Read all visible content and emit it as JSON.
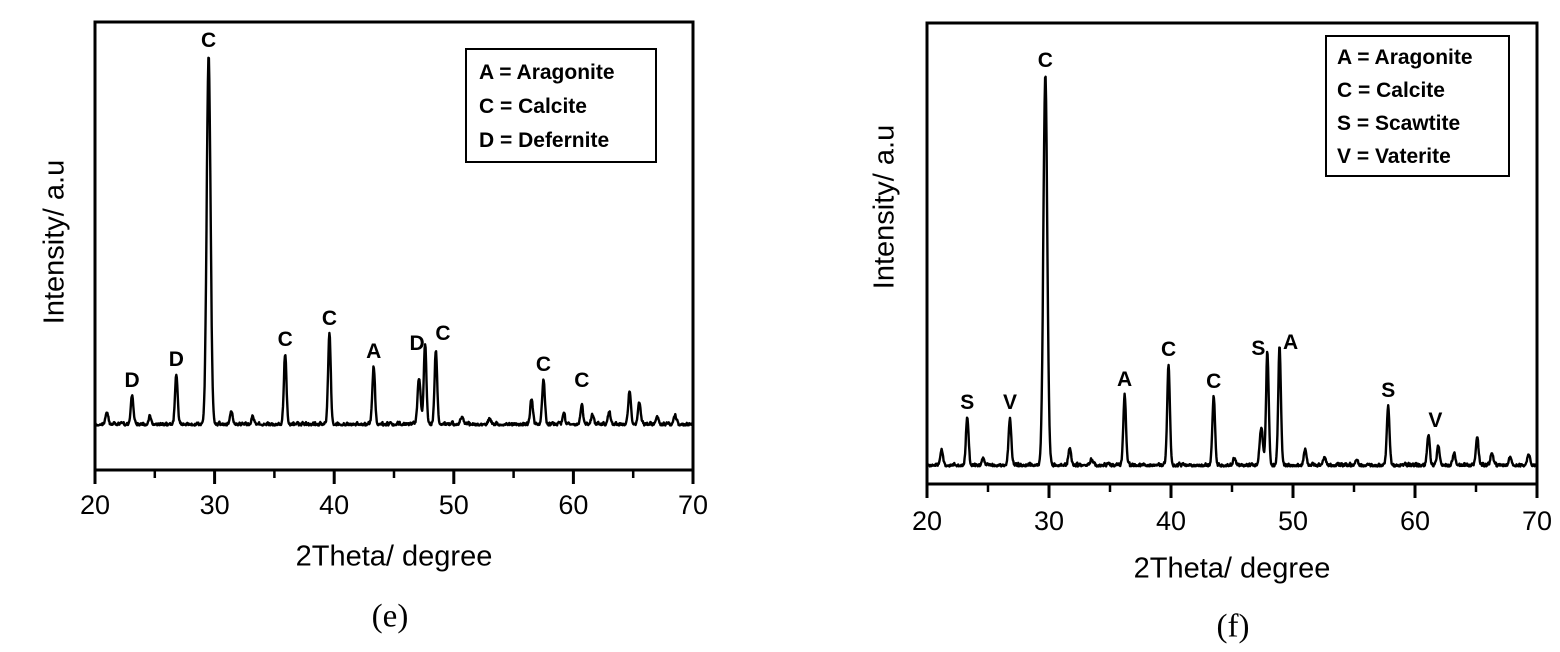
{
  "page": {
    "background": "#ffffff",
    "trace_color": "#000000"
  },
  "chart_data": [
    {
      "type": "line",
      "id": "e",
      "caption": "(e)",
      "xlabel": "2Theta/ degree",
      "ylabel": "Intensity/ a.u",
      "xlim": [
        20,
        70
      ],
      "x_ticks": [
        20,
        30,
        40,
        50,
        60,
        70
      ],
      "x_minor_ticks": [
        25,
        35,
        45,
        55,
        65
      ],
      "grid": false,
      "legend_position": "top-right",
      "legend": [
        "A = Aragonite",
        "C = Calcite",
        "D = Defernite"
      ],
      "seed": 1337,
      "peaks": [
        {
          "x": 21.0,
          "rel_h": 0.033
        },
        {
          "x": 23.1,
          "rel_h": 0.079,
          "label": "D"
        },
        {
          "x": 24.6,
          "rel_h": 0.022
        },
        {
          "x": 26.8,
          "rel_h": 0.135,
          "label": "D"
        },
        {
          "x": 29.5,
          "rel_h": 1.0,
          "label": "C",
          "w": 0.16
        },
        {
          "x": 31.4,
          "rel_h": 0.038
        },
        {
          "x": 33.2,
          "rel_h": 0.019
        },
        {
          "x": 35.9,
          "rel_h": 0.19,
          "label": "C"
        },
        {
          "x": 39.6,
          "rel_h": 0.247,
          "label": "C"
        },
        {
          "x": 43.3,
          "rel_h": 0.157,
          "label": "A"
        },
        {
          "x": 47.1,
          "rel_h": 0.125,
          "w": 0.13
        },
        {
          "x": 47.6,
          "rel_h": 0.217,
          "label": "D",
          "label_dx": -8,
          "label_dy": 14
        },
        {
          "x": 48.5,
          "rel_h": 0.2,
          "label": "C",
          "label_dx": 7,
          "label_dy": -2
        },
        {
          "x": 50.7,
          "rel_h": 0.022
        },
        {
          "x": 53.0,
          "rel_h": 0.016
        },
        {
          "x": 56.5,
          "rel_h": 0.07
        },
        {
          "x": 57.5,
          "rel_h": 0.122,
          "label": "C"
        },
        {
          "x": 59.2,
          "rel_h": 0.024
        },
        {
          "x": 60.7,
          "rel_h": 0.051,
          "label": "C",
          "label_dy": -10
        },
        {
          "x": 61.6,
          "rel_h": 0.027
        },
        {
          "x": 63.0,
          "rel_h": 0.033
        },
        {
          "x": 64.7,
          "rel_h": 0.092
        },
        {
          "x": 65.5,
          "rel_h": 0.057
        },
        {
          "x": 67.0,
          "rel_h": 0.022
        },
        {
          "x": 68.5,
          "rel_h": 0.024
        }
      ]
    },
    {
      "type": "line",
      "id": "f",
      "caption": "(f)",
      "xlabel": "2Theta/ degree",
      "ylabel": "Intensity/ a.u",
      "xlim": [
        20,
        70
      ],
      "x_ticks": [
        20,
        30,
        40,
        50,
        60,
        70
      ],
      "x_minor_ticks": [
        25,
        35,
        45,
        55,
        65
      ],
      "grid": false,
      "legend_position": "top-right",
      "legend": [
        "A = Aragonite",
        "C = Calcite",
        "S = Scawtite",
        "V = Vaterite"
      ],
      "seed": 2024,
      "peaks": [
        {
          "x": 21.2,
          "rel_h": 0.041
        },
        {
          "x": 23.3,
          "rel_h": 0.123,
          "label": "S"
        },
        {
          "x": 24.6,
          "rel_h": 0.02
        },
        {
          "x": 26.8,
          "rel_h": 0.123,
          "label": "V"
        },
        {
          "x": 29.7,
          "rel_h": 1.0,
          "label": "C",
          "w": 0.16
        },
        {
          "x": 31.7,
          "rel_h": 0.046
        },
        {
          "x": 33.5,
          "rel_h": 0.015
        },
        {
          "x": 36.2,
          "rel_h": 0.182,
          "label": "A"
        },
        {
          "x": 39.8,
          "rel_h": 0.259,
          "label": "C"
        },
        {
          "x": 43.5,
          "rel_h": 0.177,
          "label": "C"
        },
        {
          "x": 45.2,
          "rel_h": 0.018
        },
        {
          "x": 47.4,
          "rel_h": 0.097,
          "w": 0.13
        },
        {
          "x": 47.9,
          "rel_h": 0.292,
          "label": "S",
          "label_dx": -9,
          "label_dy": 12
        },
        {
          "x": 48.9,
          "rel_h": 0.303,
          "label": "A",
          "label_dx": 11,
          "label_dy": 10
        },
        {
          "x": 51.0,
          "rel_h": 0.041
        },
        {
          "x": 52.6,
          "rel_h": 0.021
        },
        {
          "x": 55.2,
          "rel_h": 0.015
        },
        {
          "x": 57.8,
          "rel_h": 0.154,
          "label": "S"
        },
        {
          "x": 61.1,
          "rel_h": 0.077,
          "label": "V",
          "label_dx": 7
        },
        {
          "x": 61.9,
          "rel_h": 0.046
        },
        {
          "x": 63.2,
          "rel_h": 0.031
        },
        {
          "x": 65.1,
          "rel_h": 0.072
        },
        {
          "x": 66.3,
          "rel_h": 0.033
        },
        {
          "x": 67.8,
          "rel_h": 0.023
        },
        {
          "x": 69.3,
          "rel_h": 0.028
        }
      ]
    }
  ]
}
